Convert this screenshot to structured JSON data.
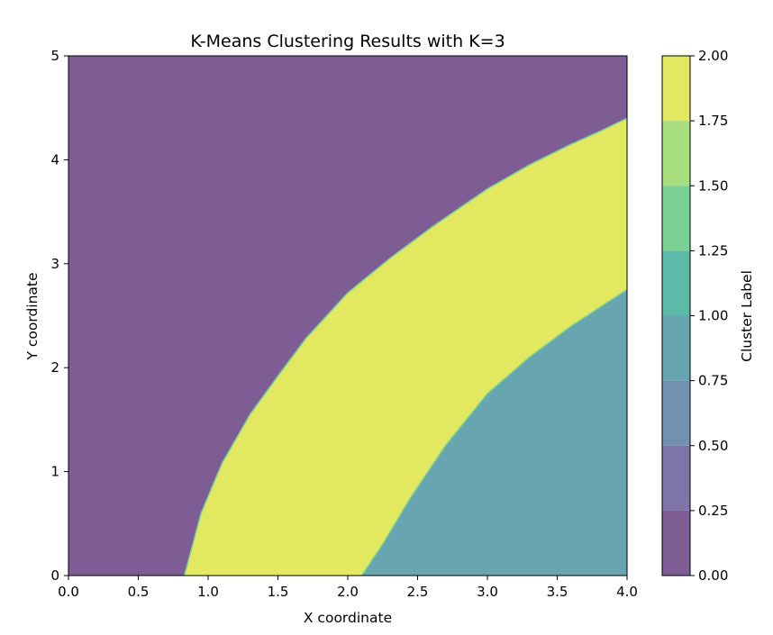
{
  "chart_data": {
    "type": "contour",
    "title": "K-Means Clustering Results with K=3",
    "xlabel": "X coordinate",
    "ylabel": "Y coordinate",
    "xlim": [
      0,
      4
    ],
    "ylim": [
      0,
      5
    ],
    "x_ticks": [
      "0.0",
      "0.5",
      "1.0",
      "1.5",
      "2.0",
      "2.5",
      "3.0",
      "3.5",
      "4.0"
    ],
    "y_ticks": [
      "0",
      "1",
      "2",
      "3",
      "4",
      "5"
    ],
    "colorbar": {
      "label": "Cluster Label",
      "range": [
        0,
        2
      ],
      "ticks": [
        "0.00",
        "0.25",
        "0.50",
        "0.75",
        "1.00",
        "1.25",
        "1.50",
        "1.75",
        "2.00"
      ],
      "levels": [
        {
          "from": 0.0,
          "to": 0.25,
          "color": "#7e5d95"
        },
        {
          "from": 0.25,
          "to": 0.5,
          "color": "#7e74a9"
        },
        {
          "from": 0.5,
          "to": 0.75,
          "color": "#7290b0"
        },
        {
          "from": 0.75,
          "to": 1.0,
          "color": "#67a6b0"
        },
        {
          "from": 1.0,
          "to": 1.25,
          "color": "#5cbaa9"
        },
        {
          "from": 1.25,
          "to": 1.5,
          "color": "#7ad095"
        },
        {
          "from": 1.5,
          "to": 1.75,
          "color": "#a7de7e"
        },
        {
          "from": 1.75,
          "to": 2.0,
          "color": "#e2e85f"
        }
      ]
    },
    "regions": [
      {
        "cluster": 0,
        "color": "#7e5d95",
        "boundary": [
          [
            0.83,
            0
          ],
          [
            0.95,
            0.6
          ],
          [
            1.1,
            1.08
          ],
          [
            1.3,
            1.55
          ],
          [
            1.5,
            1.92
          ],
          [
            1.7,
            2.28
          ],
          [
            2.0,
            2.72
          ],
          [
            2.3,
            3.05
          ],
          [
            2.6,
            3.35
          ],
          [
            3.0,
            3.72
          ],
          [
            3.3,
            3.95
          ],
          [
            3.6,
            4.15
          ],
          [
            3.8,
            4.27
          ],
          [
            4.0,
            4.4
          ]
        ]
      },
      {
        "cluster": 2,
        "color": "#e2e85f"
      },
      {
        "cluster": 1,
        "color": "#67a6b0",
        "boundary": [
          [
            2.1,
            0
          ],
          [
            2.25,
            0.3
          ],
          [
            2.45,
            0.75
          ],
          [
            2.7,
            1.25
          ],
          [
            3.0,
            1.75
          ],
          [
            3.3,
            2.1
          ],
          [
            3.6,
            2.4
          ],
          [
            3.85,
            2.62
          ],
          [
            4.0,
            2.75
          ]
        ]
      }
    ]
  }
}
